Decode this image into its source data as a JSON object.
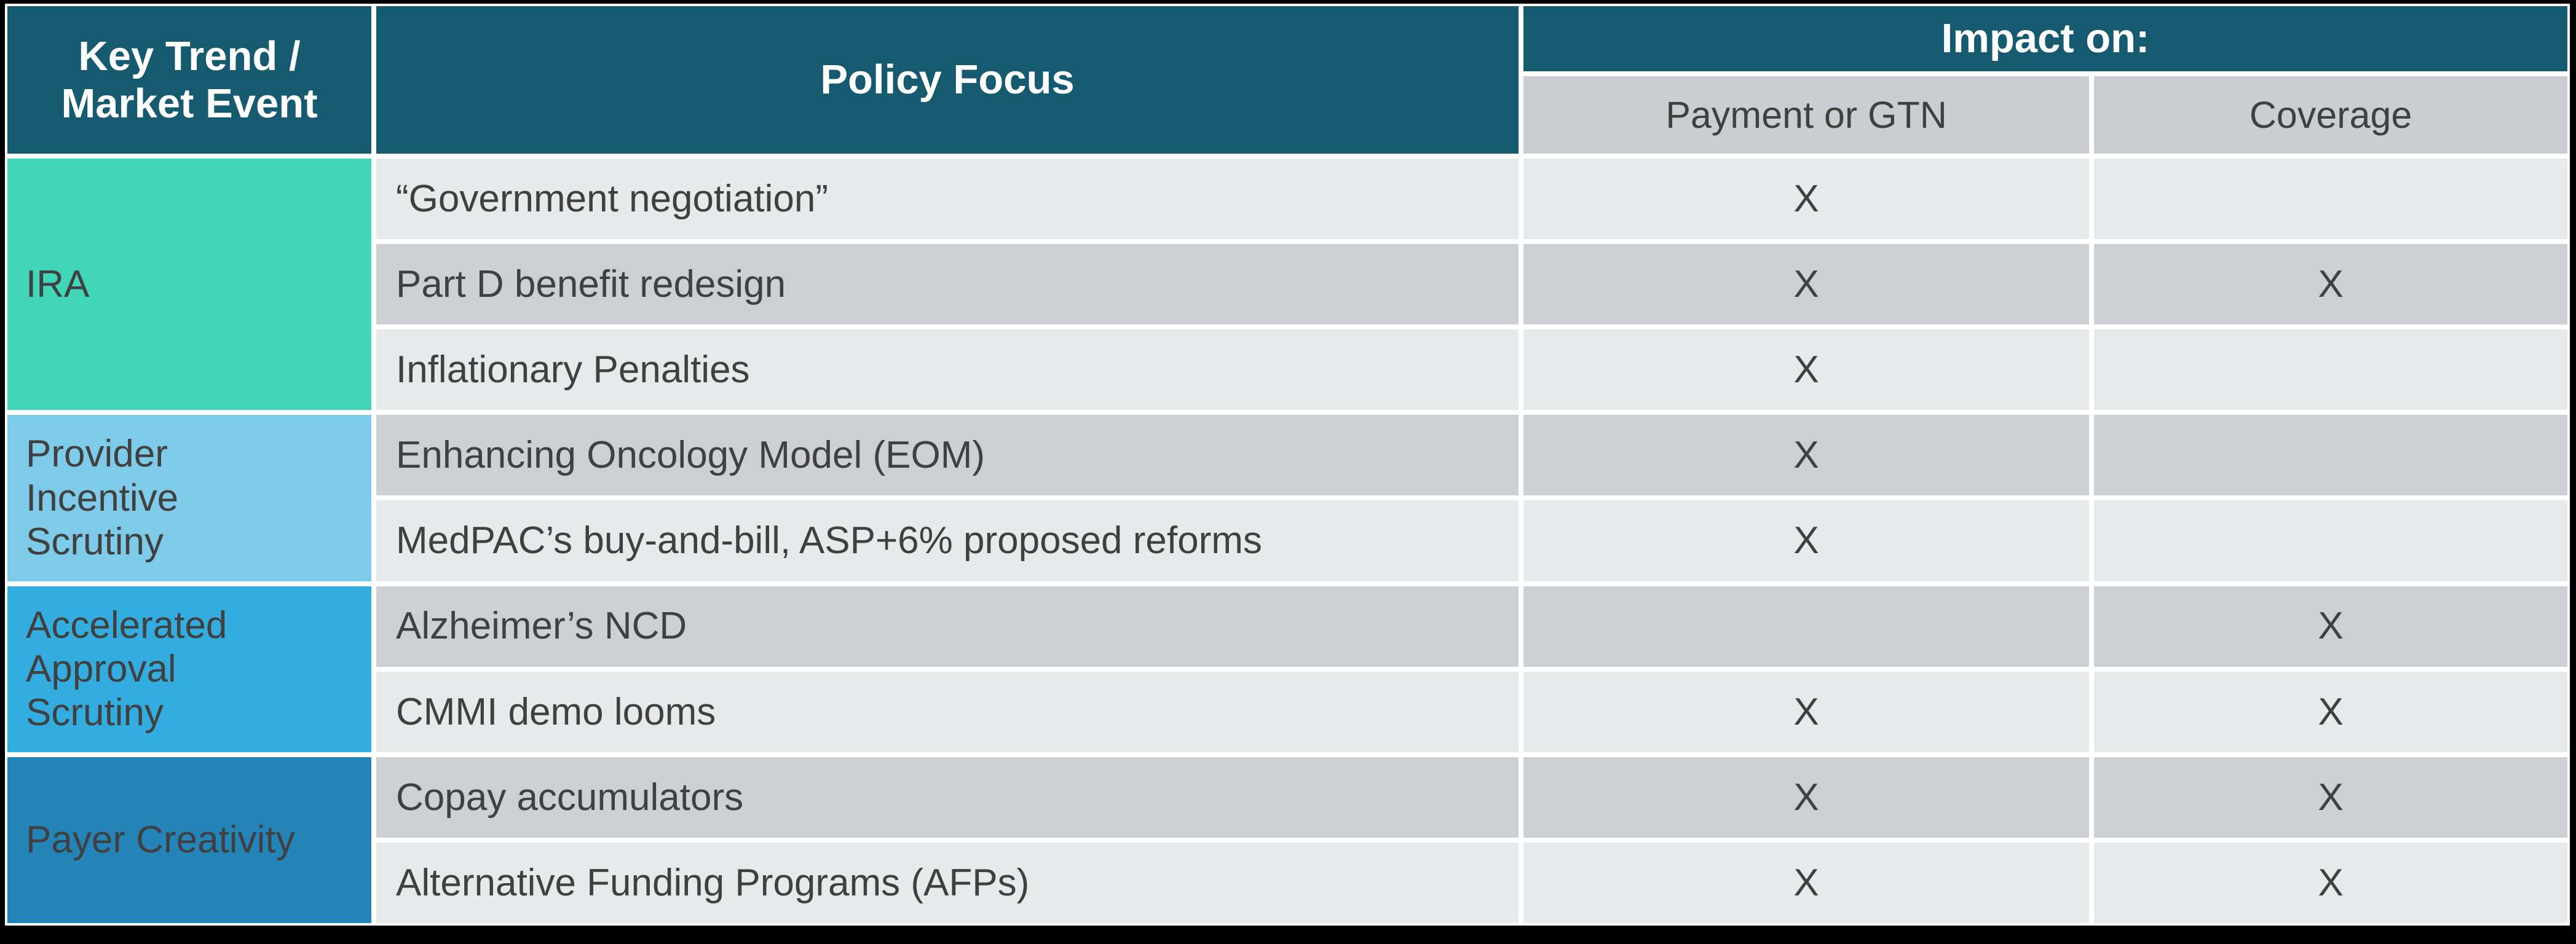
{
  "colors": {
    "header_bg": "#155A6E",
    "subheader_bg": "#CACED3",
    "row_light": "#E7EAEB",
    "row_dark": "#CCD0D4",
    "group_ira": "#41D6B7",
    "group_provider": "#7ECBE9",
    "group_accelerated": "#33ADE0",
    "group_payer": "#2484B8",
    "frame": "#000000",
    "header_text": "#FFFFFF",
    "body_text": "#404040"
  },
  "header": {
    "key_trend": "Key Trend /\nMarket Event",
    "policy_focus": "Policy Focus",
    "impact_on": "Impact on:",
    "sub_payment": "Payment or GTN",
    "sub_coverage": "Coverage"
  },
  "groups": [
    {
      "label": "IRA"
    },
    {
      "label": "Provider\nIncentive\nScrutiny"
    },
    {
      "label": "Accelerated\nApproval\nScrutiny"
    },
    {
      "label": "Payer Creativity"
    }
  ],
  "rows": [
    {
      "policy": "“Government negotiation”",
      "payment": "X",
      "coverage": ""
    },
    {
      "policy": "Part D benefit redesign",
      "payment": "X",
      "coverage": "X"
    },
    {
      "policy": "Inflationary Penalties",
      "payment": "X",
      "coverage": ""
    },
    {
      "policy": "Enhancing Oncology Model (EOM)",
      "payment": "X",
      "coverage": ""
    },
    {
      "policy": "MedPAC’s buy-and-bill, ASP+6% proposed reforms",
      "payment": "X",
      "coverage": ""
    },
    {
      "policy": "Alzheimer’s NCD",
      "payment": "",
      "coverage": "X"
    },
    {
      "policy": "CMMI demo looms",
      "payment": "X",
      "coverage": "X"
    },
    {
      "policy": "Copay accumulators",
      "payment": "X",
      "coverage": "X"
    },
    {
      "policy": "Alternative Funding Programs (AFPs)",
      "payment": "X",
      "coverage": "X"
    }
  ]
}
